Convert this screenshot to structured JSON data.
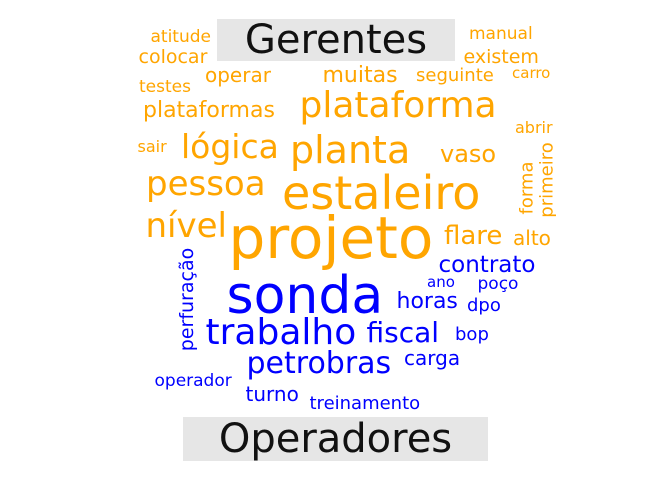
{
  "colors": {
    "gerentes": "#FFA500",
    "operadores": "#0000FF",
    "label_bg": "#E6E6E6"
  },
  "groups": {
    "gerentes": {
      "label": "Gerentes",
      "words": [
        "atitude",
        "colocar",
        "manual",
        "existem",
        "testes",
        "operar",
        "muitas",
        "seguinte",
        "carro",
        "plataformas",
        "plataforma",
        "sair",
        "lógica",
        "planta",
        "abrir",
        "vaso",
        "pessoa",
        "estaleiro",
        "forma",
        "primeiro",
        "nível",
        "projeto",
        "flare",
        "alto"
      ]
    },
    "operadores": {
      "label": "Operadores",
      "words": [
        "contrato",
        "ano",
        "poço",
        "sonda",
        "perfuração",
        "horas",
        "dpo",
        "trabalho",
        "fiscal",
        "bop",
        "petrobras",
        "carga",
        "operador",
        "turno",
        "treinamento"
      ]
    }
  }
}
